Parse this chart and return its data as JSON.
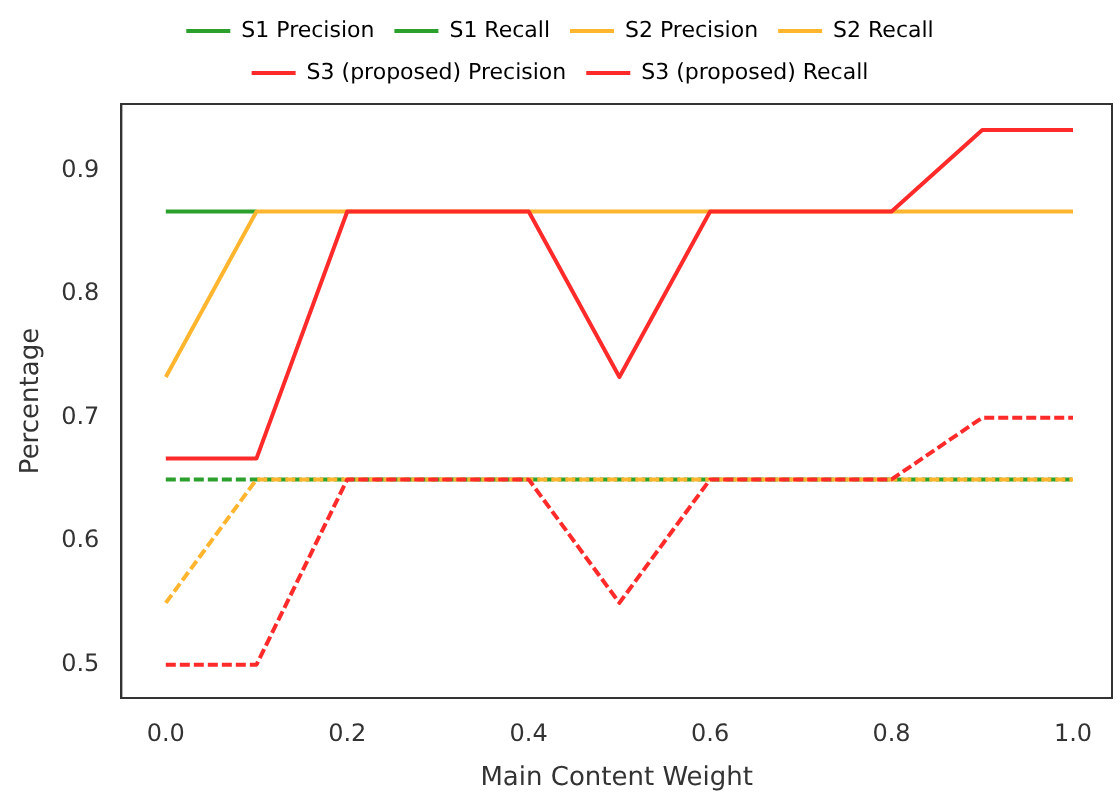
{
  "chart_data": {
    "type": "line",
    "xlabel": "Main Content Weight",
    "ylabel": "Percentage",
    "x": [
      0,
      0.1,
      0.2,
      0.3,
      0.4,
      0.5,
      0.6,
      0.7,
      0.8,
      0.9,
      1.0
    ],
    "xlim": [
      -0.049,
      1.043
    ],
    "xticks": [
      {
        "value": 0,
        "label": "0.0"
      },
      {
        "value": 0.2,
        "label": "0.2"
      },
      {
        "value": 0.4,
        "label": "0.4"
      },
      {
        "value": 0.6,
        "label": "0.6"
      },
      {
        "value": 0.8,
        "label": "0.8"
      },
      {
        "value": 1,
        "label": "1.0"
      }
    ],
    "ylim": [
      0.473,
      0.954
    ],
    "yticks": [
      0.5,
      0.6,
      0.7,
      0.8,
      0.9
    ],
    "grid": false,
    "legend": "top",
    "marker": "none",
    "series": [
      {
        "name": "S1 Precision",
        "color": "#2ca02c",
        "line_style": "solid",
        "values": [
          0.867,
          0.867,
          null,
          null,
          null,
          null,
          null,
          null,
          null,
          null,
          null
        ]
      },
      {
        "name": "S1 Recall",
        "color": "#2ca02c",
        "line_style": "dashed",
        "values": [
          0.65,
          0.65,
          0.65,
          0.65,
          0.65,
          0.65,
          0.65,
          0.65,
          0.65,
          0.65,
          0.65
        ]
      },
      {
        "name": "S2 Precision",
        "color": "#ffb52e",
        "line_style": "solid",
        "values": [
          0.733,
          0.867,
          0.867,
          0.867,
          0.867,
          0.867,
          0.867,
          0.867,
          0.867,
          0.867,
          0.867
        ]
      },
      {
        "name": "S2 Recall",
        "color": "#ffb52e",
        "line_style": "dashed",
        "values": [
          0.55,
          0.65,
          0.65,
          0.65,
          0.65,
          0.65,
          0.65,
          0.65,
          0.65,
          0.65,
          0.65
        ]
      },
      {
        "name": "S3 (proposed) Precision",
        "color": "#ff2a2a",
        "line_style": "solid",
        "values": [
          0.667,
          0.667,
          0.867,
          0.867,
          0.867,
          0.733,
          0.867,
          0.867,
          0.867,
          0.933,
          0.933
        ]
      },
      {
        "name": "S3 (proposed) Recall",
        "color": "#ff2a2a",
        "line_style": "dashed",
        "values": [
          0.5,
          0.5,
          0.65,
          0.65,
          0.65,
          0.55,
          0.65,
          0.65,
          0.65,
          0.7,
          0.7
        ]
      }
    ]
  }
}
